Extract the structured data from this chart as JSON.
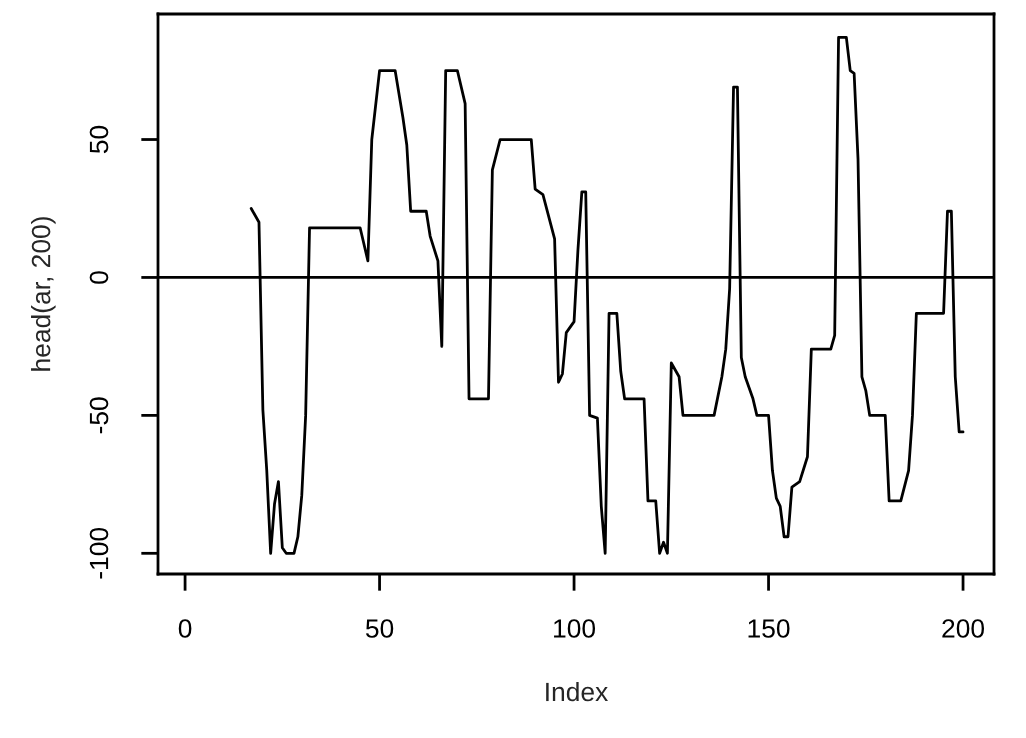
{
  "chart_data": {
    "type": "line",
    "xlabel": "Index",
    "ylabel": "head(ar, 200)",
    "x": [
      17,
      19,
      20,
      21,
      22,
      23,
      24,
      25,
      26,
      28,
      29,
      30,
      31,
      32,
      45,
      47,
      48,
      50,
      54,
      56,
      57,
      58,
      62,
      63,
      65,
      66,
      67,
      70,
      72,
      73,
      78,
      79,
      81,
      89,
      90,
      92,
      95,
      96,
      97,
      98,
      100,
      101,
      102,
      103,
      104,
      106,
      107,
      108,
      109,
      111,
      112,
      113,
      118,
      119,
      121,
      122,
      123,
      124,
      125,
      127,
      128,
      136,
      138,
      139,
      140,
      141,
      142,
      143,
      144,
      146,
      147,
      150,
      151,
      152,
      153,
      154,
      155,
      156,
      158,
      160,
      161,
      166,
      167,
      168,
      170,
      171,
      172,
      173,
      174,
      175,
      176,
      180,
      181,
      184,
      186,
      187,
      188,
      195,
      196,
      197,
      198,
      199,
      200
    ],
    "series": [
      {
        "color": "#000000",
        "values": [
          25,
          20,
          -48,
          -70,
          -100,
          -82,
          -74,
          -98,
          -100,
          -100,
          -94,
          -79,
          -50,
          18,
          18,
          6,
          50,
          75,
          75,
          58,
          48,
          24,
          24,
          15,
          6,
          -25,
          75,
          75,
          63,
          -44,
          -44,
          39,
          50,
          50,
          32,
          30,
          14,
          -38,
          -35,
          -20,
          -16,
          10,
          31,
          31,
          -50,
          -51,
          -83,
          -100,
          -13,
          -13,
          -34,
          -44,
          -44,
          -81,
          -81,
          -100,
          -96,
          -100,
          -31,
          -36,
          -50,
          -50,
          -36,
          -26,
          -4,
          69,
          69,
          -29,
          -36,
          -44,
          -50,
          -50,
          -70,
          -80,
          -83,
          -94,
          -94,
          -76,
          -74,
          -65,
          -26,
          -26,
          -21,
          87,
          87,
          75,
          74,
          43,
          -36,
          -41,
          -50,
          -50,
          -81,
          -81,
          -70,
          -50,
          -13,
          -13,
          24,
          24,
          -36,
          -56,
          -56
        ]
      }
    ],
    "xlim": [
      -6.96,
      207.96
    ],
    "ylim": [
      -107.5,
      95.5
    ],
    "xticks": [
      0,
      50,
      100,
      150,
      200
    ],
    "yticks": [
      -100,
      -50,
      0,
      50
    ],
    "ref_lines": [
      {
        "axis": "y",
        "value": 0,
        "color": "#000000"
      }
    ],
    "grid": false,
    "legend": false,
    "marker": "none",
    "line_style": "solid"
  }
}
